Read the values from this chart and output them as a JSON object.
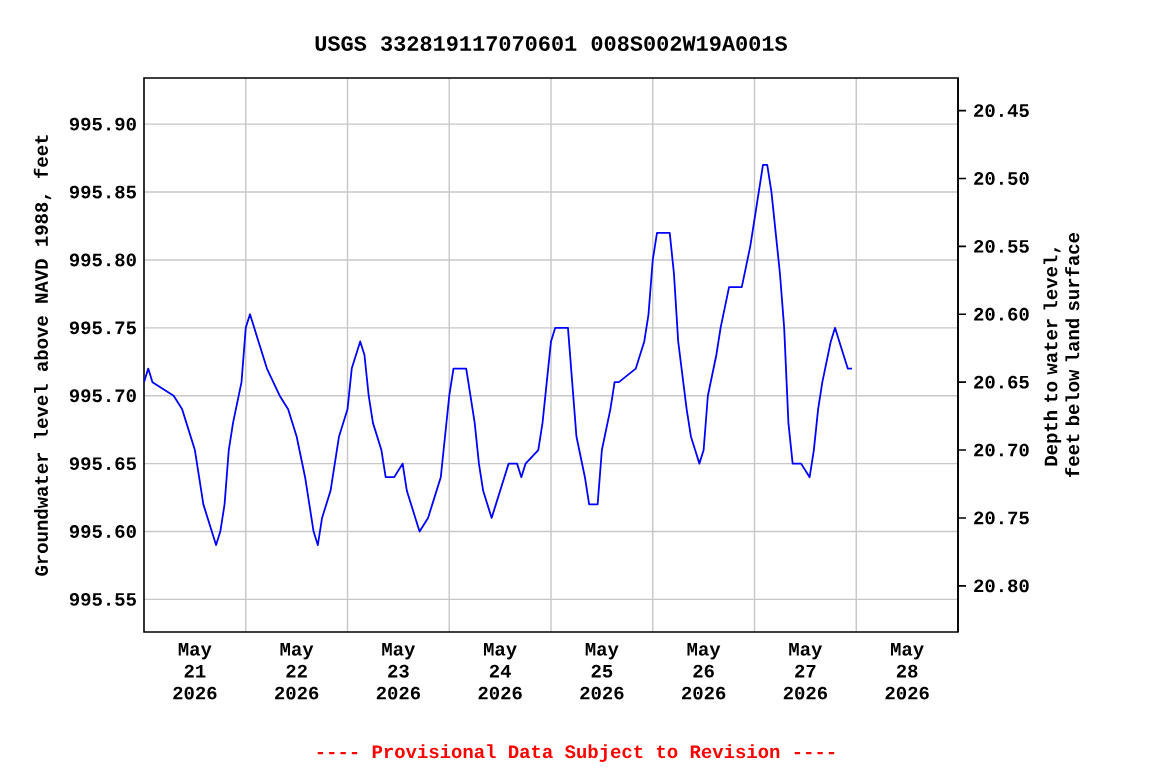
{
  "chart_data": {
    "type": "line",
    "title": "USGS 332819117070601 008S002W19A001S",
    "ylabel": "Groundwater level above NAVD 1988, feet",
    "y2label": "Depth to water level, feet below land surface",
    "annotations": [
      "---- Provisional Data Subject to Revision ----"
    ],
    "grid": true,
    "xlim": [
      "2026-05-21T00:00",
      "2026-05-29T00:00"
    ],
    "xticks": [
      {
        "value": "2026-05-22T00:00",
        "label": null
      },
      {
        "value": "2026-05-23T00:00",
        "label": null
      },
      {
        "value": "2026-05-24T00:00",
        "label": null
      },
      {
        "value": "2026-05-25T00:00",
        "label": null
      },
      {
        "value": "2026-05-26T00:00",
        "label": null
      },
      {
        "value": "2026-05-27T00:00",
        "label": null
      },
      {
        "value": "2026-05-28T00:00",
        "label": null
      },
      {
        "value": "2026-05-21T12:00",
        "label": "May 21 2026"
      },
      {
        "value": "2026-05-22T12:00",
        "label": "May 22 2026"
      },
      {
        "value": "2026-05-23T12:00",
        "label": "May 23 2026"
      },
      {
        "value": "2026-05-24T12:00",
        "label": "May 24 2026"
      },
      {
        "value": "2026-05-25T12:00",
        "label": "May 25 2026"
      },
      {
        "value": "2026-05-26T12:00",
        "label": "May 26 2026"
      },
      {
        "value": "2026-05-27T12:00",
        "label": "May 27 2026"
      },
      {
        "value": "2026-05-28T12:00",
        "label": "May 28 2026"
      }
    ],
    "ylim": [
      995.526,
      995.934
    ],
    "yticks": [
      995.55,
      {
        "value": 995.6,
        "label": "995.60"
      },
      995.65,
      {
        "value": 995.7,
        "label": "995.70"
      },
      995.75,
      {
        "value": 995.8,
        "label": "995.80"
      },
      995.85,
      {
        "value": 995.9,
        "label": "995.90"
      }
    ],
    "y2lim": [
      20.834,
      20.426
    ],
    "y2ticks": [
      20.45,
      {
        "value": 20.5,
        "label": "20.50"
      },
      20.55,
      {
        "value": 20.6,
        "label": "20.60"
      },
      20.65,
      {
        "value": 20.7,
        "label": "20.70"
      },
      20.75,
      {
        "value": 20.8,
        "label": "20.80"
      }
    ],
    "series": [
      {
        "color": "#0000ff",
        "x": [
          "2026-05-21T00:00",
          "2026-05-21T01:00",
          "2026-05-21T02:00",
          "2026-05-21T07:00",
          "2026-05-21T09:00",
          "2026-05-21T10:00",
          "2026-05-21T12:00",
          "2026-05-21T13:00",
          "2026-05-21T14:00",
          "2026-05-21T16:00",
          "2026-05-21T17:00",
          "2026-05-21T18:00",
          "2026-05-21T19:00",
          "2026-05-21T20:00",
          "2026-05-21T21:00",
          "2026-05-21T23:00",
          "2026-05-22T00:00",
          "2026-05-22T01:00",
          "2026-05-22T02:00",
          "2026-05-22T03:00",
          "2026-05-22T05:00",
          "2026-05-22T08:00",
          "2026-05-22T10:00",
          "2026-05-22T12:00",
          "2026-05-22T14:00",
          "2026-05-22T15:00",
          "2026-05-22T16:00",
          "2026-05-22T17:00",
          "2026-05-22T18:00",
          "2026-05-22T20:00",
          "2026-05-22T21:00",
          "2026-05-22T22:00",
          "2026-05-23T00:00",
          "2026-05-23T01:00",
          "2026-05-23T03:00",
          "2026-05-23T04:00",
          "2026-05-23T05:00",
          "2026-05-23T06:00",
          "2026-05-23T08:00",
          "2026-05-23T09:00",
          "2026-05-23T11:00",
          "2026-05-23T13:00",
          "2026-05-23T14:00",
          "2026-05-23T16:00",
          "2026-05-23T17:00",
          "2026-05-23T19:00",
          "2026-05-23T20:00",
          "2026-05-23T22:00",
          "2026-05-23T23:00",
          "2026-05-24T00:00",
          "2026-05-24T01:00",
          "2026-05-24T04:00",
          "2026-05-24T05:00",
          "2026-05-24T06:00",
          "2026-05-24T07:00",
          "2026-05-24T08:00",
          "2026-05-24T10:00",
          "2026-05-24T11:00",
          "2026-05-24T13:00",
          "2026-05-24T14:00",
          "2026-05-24T16:00",
          "2026-05-24T17:00",
          "2026-05-24T18:00",
          "2026-05-24T21:00",
          "2026-05-24T22:00",
          "2026-05-24T23:00",
          "2026-05-25T00:00",
          "2026-05-25T01:00",
          "2026-05-25T04:00",
          "2026-05-25T05:00",
          "2026-05-25T06:00",
          "2026-05-25T08:00",
          "2026-05-25T09:00",
          "2026-05-25T11:00",
          "2026-05-25T12:00",
          "2026-05-25T14:00",
          "2026-05-25T15:00",
          "2026-05-25T16:00",
          "2026-05-25T20:00",
          "2026-05-25T21:00",
          "2026-05-25T22:00",
          "2026-05-25T23:00",
          "2026-05-26T00:00",
          "2026-05-26T01:00",
          "2026-05-26T04:00",
          "2026-05-26T05:00",
          "2026-05-26T06:00",
          "2026-05-26T08:00",
          "2026-05-26T09:00",
          "2026-05-26T10:00",
          "2026-05-26T11:00",
          "2026-05-26T12:00",
          "2026-05-26T13:00",
          "2026-05-26T15:00",
          "2026-05-26T16:00",
          "2026-05-26T18:00",
          "2026-05-26T20:00",
          "2026-05-26T21:00",
          "2026-05-26T23:00",
          "2026-05-27T01:00",
          "2026-05-27T02:00",
          "2026-05-27T03:00",
          "2026-05-27T04:00",
          "2026-05-27T05:00",
          "2026-05-27T06:00",
          "2026-05-27T07:00",
          "2026-05-27T08:00",
          "2026-05-27T09:00",
          "2026-05-27T11:00",
          "2026-05-27T13:00",
          "2026-05-27T14:00",
          "2026-05-27T15:00",
          "2026-05-27T16:00",
          "2026-05-27T18:00",
          "2026-05-27T19:00",
          "2026-05-27T20:00",
          "2026-05-27T21:00",
          "2026-05-27T22:00",
          "2026-05-27T23:00"
        ],
        "values": [
          995.71,
          995.72,
          995.71,
          995.7,
          995.69,
          995.68,
          995.66,
          995.64,
          995.62,
          995.6,
          995.59,
          995.6,
          995.62,
          995.66,
          995.68,
          995.71,
          995.75,
          995.76,
          995.75,
          995.74,
          995.72,
          995.7,
          995.69,
          995.67,
          995.64,
          995.62,
          995.6,
          995.59,
          995.61,
          995.63,
          995.65,
          995.67,
          995.69,
          995.72,
          995.74,
          995.73,
          995.7,
          995.68,
          995.66,
          995.64,
          995.64,
          995.65,
          995.63,
          995.61,
          995.6,
          995.61,
          995.62,
          995.64,
          995.67,
          995.7,
          995.72,
          995.72,
          995.7,
          995.68,
          995.65,
          995.63,
          995.61,
          995.62,
          995.64,
          995.65,
          995.65,
          995.64,
          995.65,
          995.66,
          995.68,
          995.71,
          995.74,
          995.75,
          995.75,
          995.71,
          995.67,
          995.64,
          995.62,
          995.62,
          995.66,
          995.69,
          995.71,
          995.71,
          995.72,
          995.73,
          995.74,
          995.76,
          995.8,
          995.82,
          995.82,
          995.79,
          995.74,
          995.69,
          995.67,
          995.66,
          995.65,
          995.66,
          995.7,
          995.73,
          995.75,
          995.78,
          995.78,
          995.78,
          995.81,
          995.85,
          995.87,
          995.87,
          995.85,
          995.82,
          995.79,
          995.75,
          995.68,
          995.65,
          995.65,
          995.64,
          995.66,
          995.69,
          995.71,
          995.74,
          995.75,
          995.74,
          995.73,
          995.72,
          995.72
        ]
      }
    ]
  }
}
